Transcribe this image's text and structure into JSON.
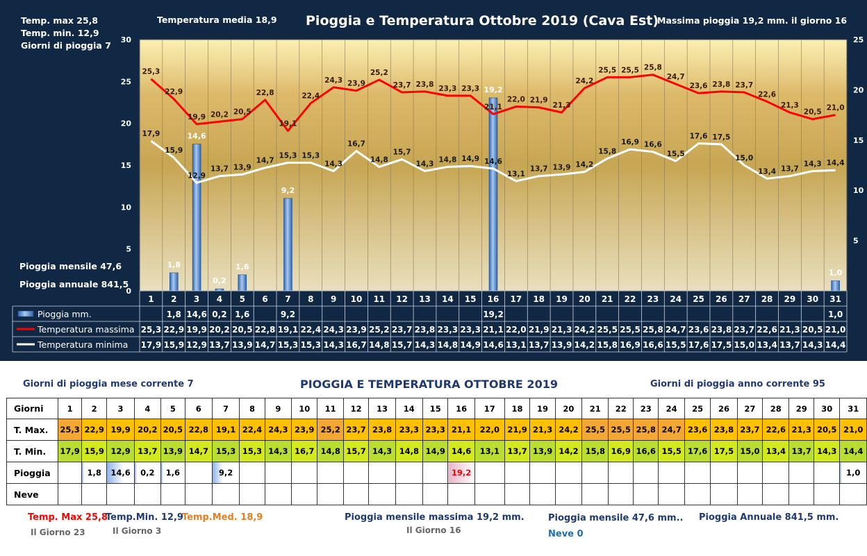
{
  "header": {
    "temp_max_label": "Temp. max  25,8",
    "temp_min_label": "Temp.  min. 12,9",
    "rain_days_label": "Giorni  di pioggia   7",
    "temp_media_label": "Temperatura media  18,9",
    "title": "Pioggia e Temperatura Ottobre 2019 (Cava Est)",
    "max_rain_label": "Massima pioggia  19,2 mm. il giorno  16",
    "monthly_rain_label": "Pioggia mensile     47,6",
    "annual_rain_label": "Pioggia annuale    841,5"
  },
  "chart_data": {
    "type": "bar+line",
    "title": "Pioggia e Temperatura Ottobre 2019 (Cava Est)",
    "categories": [
      "1",
      "2",
      "3",
      "4",
      "5",
      "6",
      "7",
      "8",
      "9",
      "10",
      "11",
      "12",
      "13",
      "14",
      "15",
      "16",
      "17",
      "18",
      "19",
      "20",
      "21",
      "22",
      "23",
      "24",
      "25",
      "26",
      "27",
      "28",
      "29",
      "30",
      "31"
    ],
    "y_left_ticks": [
      "0",
      "5",
      "10",
      "15",
      "20",
      "25",
      "30"
    ],
    "y_left_range": [
      0,
      30
    ],
    "y_right_ticks": [
      "5",
      "10",
      "15",
      "20",
      "25"
    ],
    "y_right_range": [
      0,
      25
    ],
    "series": [
      {
        "name": "Pioggia mm.",
        "type": "bar",
        "axis": "right",
        "color": "#4f86cc",
        "values": [
          null,
          1.8,
          14.6,
          0.2,
          1.6,
          null,
          9.2,
          null,
          null,
          null,
          null,
          null,
          null,
          null,
          null,
          19.2,
          null,
          null,
          null,
          null,
          null,
          null,
          null,
          null,
          null,
          null,
          null,
          null,
          null,
          null,
          1.0
        ],
        "labels": [
          "",
          "1,8",
          "14,6",
          "0,2",
          "1,6",
          "",
          "9,2",
          "",
          "",
          "",
          "",
          "",
          "",
          "",
          "",
          "19,2",
          "",
          "",
          "",
          "",
          "",
          "",
          "",
          "",
          "",
          "",
          "",
          "",
          "",
          "",
          "1,0"
        ]
      },
      {
        "name": "Temperatura massima",
        "type": "line",
        "axis": "left",
        "color": "#ff0000",
        "values": [
          25.3,
          22.9,
          19.9,
          20.2,
          20.5,
          22.8,
          19.1,
          22.4,
          24.3,
          23.9,
          25.2,
          23.7,
          23.8,
          23.3,
          23.3,
          21.1,
          22.0,
          21.9,
          21.3,
          24.2,
          25.5,
          25.5,
          25.8,
          24.7,
          23.6,
          23.8,
          23.7,
          22.6,
          21.3,
          20.5,
          21.0
        ],
        "labels": [
          "25,3",
          "22,9",
          "19,9",
          "20,2",
          "20,5",
          "22,8",
          "19,1",
          "22,4",
          "24,3",
          "23,9",
          "25,2",
          "23,7",
          "23,8",
          "23,3",
          "23,3",
          "21,1",
          "22,0",
          "21,9",
          "21,3",
          "24,2",
          "25,5",
          "25,5",
          "25,8",
          "24,7",
          "23,6",
          "23,8",
          "23,7",
          "22,6",
          "21,3",
          "20,5",
          "21,0"
        ]
      },
      {
        "name": "Temperatura minima",
        "type": "line",
        "axis": "left",
        "color": "#ffffff",
        "values": [
          17.9,
          15.9,
          12.9,
          13.7,
          13.9,
          14.7,
          15.3,
          15.3,
          14.3,
          16.7,
          14.8,
          15.7,
          14.3,
          14.8,
          14.9,
          14.6,
          13.1,
          13.7,
          13.9,
          14.2,
          15.8,
          16.9,
          16.6,
          15.5,
          17.6,
          17.5,
          15.0,
          13.4,
          13.7,
          14.3,
          14.4
        ],
        "labels": [
          "17,9",
          "15,9",
          "12,9",
          "13,7",
          "13,9",
          "14,7",
          "15,3",
          "15,3",
          "14,3",
          "16,7",
          "14,8",
          "15,7",
          "14,3",
          "14,8",
          "14,9",
          "14,6",
          "13,1",
          "13,7",
          "13,9",
          "14,2",
          "15,8",
          "16,9",
          "16,6",
          "15,5",
          "17,6",
          "17,5",
          "15,0",
          "13,4",
          "13,7",
          "14,3",
          "14,4"
        ]
      }
    ]
  },
  "bottom": {
    "rain_days_month": "Giorni di pioggia mese corrente   7",
    "title": "PIOGGIA E TEMPERATURA OTTOBRE 2019",
    "rain_days_year": "Giorni di pioggia anno corrente  95",
    "table": {
      "row_labels": [
        "Giorni",
        "T. Max.",
        "T. Min.",
        "Pioggia",
        "Neve"
      ],
      "days": [
        "1",
        "2",
        "3",
        "4",
        "5",
        "6",
        "7",
        "8",
        "9",
        "10",
        "11",
        "12",
        "13",
        "14",
        "15",
        "16",
        "17",
        "18",
        "19",
        "20",
        "21",
        "22",
        "23",
        "24",
        "25",
        "26",
        "27",
        "28",
        "29",
        "30",
        "31"
      ],
      "tmax": [
        "25,3",
        "22,9",
        "19,9",
        "20,2",
        "20,5",
        "22,8",
        "19,1",
        "22,4",
        "24,3",
        "23,9",
        "25,2",
        "23,7",
        "23,8",
        "23,3",
        "23,3",
        "21,1",
        "22,0",
        "21,9",
        "21,3",
        "24,2",
        "25,5",
        "25,5",
        "25,8",
        "24,7",
        "23,6",
        "23,8",
        "23,7",
        "22,6",
        "21,3",
        "20,5",
        "21,0"
      ],
      "tmin": [
        "17,9",
        "15,9",
        "12,9",
        "13,7",
        "13,9",
        "14,7",
        "15,3",
        "15,3",
        "14,3",
        "16,7",
        "14,8",
        "15,7",
        "14,3",
        "14,8",
        "14,9",
        "14,6",
        "13,1",
        "13,7",
        "13,9",
        "14,2",
        "15,8",
        "16,9",
        "16,6",
        "15,5",
        "17,6",
        "17,5",
        "15,0",
        "13,4",
        "13,7",
        "14,3",
        "14,4"
      ],
      "rain": [
        "",
        "1,8",
        "14,6",
        "0,2",
        "1,6",
        "",
        "9,2",
        "",
        "",
        "",
        "",
        "",
        "",
        "",
        "",
        "19,2",
        "",
        "",
        "",
        "",
        "",
        "",
        "",
        "",
        "",
        "",
        "",
        "",
        "",
        "",
        "1,0"
      ],
      "rain_fraction": [
        0,
        0.09,
        0.76,
        0.01,
        0.08,
        0,
        0.48,
        0,
        0,
        0,
        0,
        0,
        0,
        0,
        0,
        1.0,
        0,
        0,
        0,
        0,
        0,
        0,
        0,
        0,
        0,
        0,
        0,
        0,
        0,
        0,
        0.05
      ]
    },
    "temp_max": "Temp. Max 25,8",
    "temp_max_day": "Il Giorno  23",
    "temp_min": "Temp.Min.  12,9",
    "temp_min_day": "Il Giorno  3",
    "temp_med": "Temp.Med. 18,9",
    "rain_max": "Pioggia mensile massima 19,2   mm.",
    "rain_max_day": "Il Giorno 16",
    "rain_month": "Pioggia mensile  47,6   mm..",
    "snow": "Neve 0",
    "rain_year": "Pioggia Annuale  841,5    mm.",
    "colors": {
      "red": "#ff0000",
      "navy": "#1f3a73",
      "orange": "#e67e22",
      "gray": "#666666",
      "blue": "#1f6fb4"
    }
  }
}
